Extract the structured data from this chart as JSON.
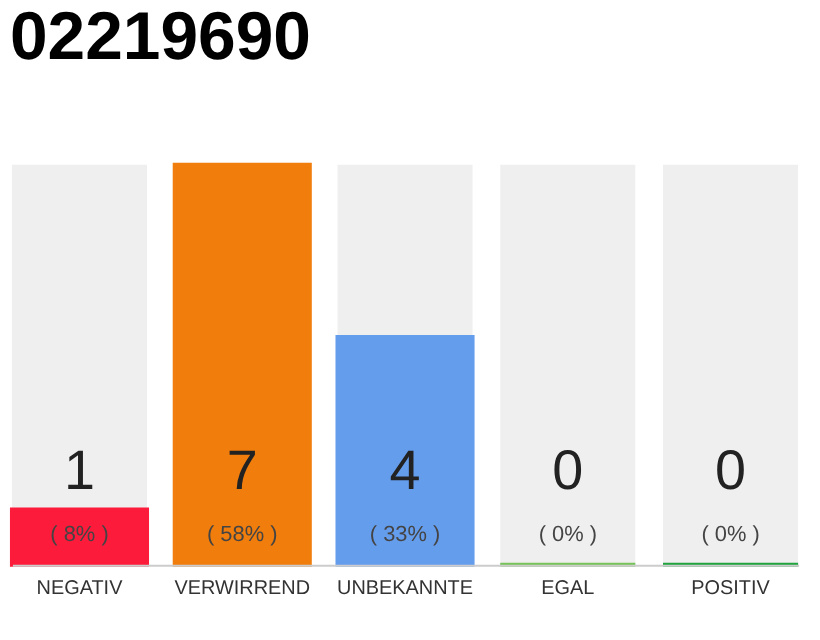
{
  "chart_data": {
    "type": "bar",
    "title": "02219690",
    "categories": [
      "NEGATIV",
      "VERWIRREND",
      "UNBEKANNTE",
      "EGAL",
      "POSITIV"
    ],
    "values": [
      8,
      58,
      33,
      0,
      0
    ],
    "colors": [
      "#fc1b3b",
      "#f07d0c",
      "#659ded",
      "#77c35a",
      "#22a53f"
    ],
    "value_labels": [
      "( 8% )",
      "( 58% )",
      "( 33% )",
      "( 0% )",
      "( 0% )"
    ],
    "annotations": [
      "1",
      "7",
      "4",
      "0",
      "0"
    ]
  }
}
